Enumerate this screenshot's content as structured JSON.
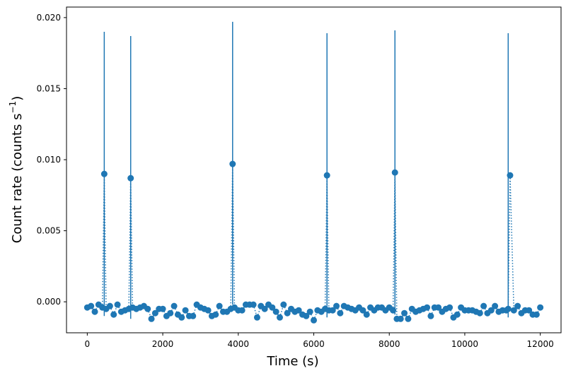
{
  "chart_data": {
    "type": "scatter",
    "title": "",
    "xlabel": "Time (s)",
    "ylabel_main": "Count rate (counts s",
    "ylabel_sup": "−1",
    "ylabel_close": ")",
    "xlim": [
      -550,
      12550
    ],
    "ylim": [
      -0.00218,
      0.02074
    ],
    "x_ticks": [
      0,
      2000,
      4000,
      6000,
      8000,
      10000,
      12000
    ],
    "x_tick_labels": [
      "0",
      "2000",
      "4000",
      "6000",
      "8000",
      "10000",
      "12000"
    ],
    "y_ticks": [
      0.0,
      0.005,
      0.01,
      0.015,
      0.02
    ],
    "y_tick_labels": [
      "0.000",
      "0.005",
      "0.010",
      "0.015",
      "0.020"
    ],
    "grid": false,
    "legend": "none",
    "series_color": "#1f77b4",
    "marker": "circle",
    "connector": "dotted",
    "x": [
      0,
      100,
      200,
      300,
      400,
      450,
      500,
      600,
      700,
      800,
      900,
      1000,
      1100,
      1150,
      1200,
      1300,
      1400,
      1500,
      1600,
      1700,
      1800,
      1900,
      2000,
      2100,
      2200,
      2300,
      2400,
      2500,
      2600,
      2700,
      2800,
      2900,
      3000,
      3100,
      3200,
      3300,
      3400,
      3500,
      3600,
      3700,
      3800,
      3850,
      3900,
      4000,
      4100,
      4200,
      4300,
      4400,
      4500,
      4600,
      4700,
      4800,
      4900,
      5000,
      5100,
      5200,
      5300,
      5400,
      5500,
      5600,
      5700,
      5800,
      5900,
      6000,
      6100,
      6200,
      6300,
      6350,
      6400,
      6500,
      6600,
      6700,
      6800,
      6900,
      7000,
      7100,
      7200,
      7300,
      7400,
      7500,
      7600,
      7700,
      7800,
      7900,
      8000,
      8100,
      8150,
      8200,
      8300,
      8400,
      8500,
      8600,
      8700,
      8800,
      8900,
      9000,
      9100,
      9200,
      9300,
      9400,
      9500,
      9600,
      9700,
      9800,
      9900,
      10000,
      10100,
      10200,
      10300,
      10400,
      10500,
      10600,
      10700,
      10800,
      10900,
      11000,
      11100,
      11150,
      11200,
      11300,
      11400,
      11500,
      11600,
      11700,
      11800,
      11900,
      12000
    ],
    "y": [
      -0.0004,
      -0.0003,
      -0.0007,
      -0.0002,
      -0.0004,
      0.009,
      -0.0005,
      -0.0003,
      -0.0009,
      -0.0002,
      -0.0007,
      -0.0006,
      -0.0005,
      0.0087,
      -0.0004,
      -0.0005,
      -0.0004,
      -0.0003,
      -0.0005,
      -0.0012,
      -0.0008,
      -0.0005,
      -0.0005,
      -0.001,
      -0.0008,
      -0.0003,
      -0.0009,
      -0.0011,
      -0.0006,
      -0.001,
      -0.001,
      -0.0002,
      -0.0004,
      -0.0005,
      -0.0006,
      -0.001,
      -0.0009,
      -0.0003,
      -0.0007,
      -0.0007,
      -0.0005,
      0.0097,
      -0.0004,
      -0.0006,
      -0.0006,
      -0.0002,
      -0.0002,
      -0.0002,
      -0.0011,
      -0.0003,
      -0.0005,
      -0.0002,
      -0.0004,
      -0.0007,
      -0.0011,
      -0.0002,
      -0.0008,
      -0.0005,
      -0.0007,
      -0.0006,
      -0.0009,
      -0.001,
      -0.0007,
      -0.0013,
      -0.0006,
      -0.0007,
      -0.0005,
      0.0089,
      -0.0006,
      -0.0006,
      -0.0003,
      -0.0008,
      -0.0003,
      -0.0004,
      -0.0005,
      -0.0006,
      -0.0004,
      -0.0006,
      -0.0009,
      -0.0004,
      -0.0006,
      -0.0004,
      -0.0004,
      -0.0006,
      -0.0004,
      -0.0006,
      0.0091,
      -0.0012,
      -0.0012,
      -0.0008,
      -0.0012,
      -0.0005,
      -0.0007,
      -0.0006,
      -0.0005,
      -0.0004,
      -0.001,
      -0.0004,
      -0.0004,
      -0.0007,
      -0.0005,
      -0.0004,
      -0.0011,
      -0.0009,
      -0.0004,
      -0.0006,
      -0.0006,
      -0.0006,
      -0.0007,
      -0.0008,
      -0.0003,
      -0.0008,
      -0.0006,
      -0.0003,
      -0.0007,
      -0.0006,
      -0.0006,
      -0.0005,
      0.0089,
      -0.0006,
      -0.0003,
      -0.0008,
      -0.0006,
      -0.0006,
      -0.0009,
      -0.0009,
      -0.0004
    ],
    "error_bars": [
      {
        "x": 450,
        "low": -0.001,
        "high": 0.019
      },
      {
        "x": 1150,
        "low": -0.0012,
        "high": 0.0187
      },
      {
        "x": 3850,
        "low": -0.0002,
        "high": 0.0197
      },
      {
        "x": 6350,
        "low": -0.0011,
        "high": 0.0189
      },
      {
        "x": 8150,
        "low": -0.0009,
        "high": 0.0191
      },
      {
        "x": 11150,
        "low": -0.0011,
        "high": 0.0189
      }
    ]
  }
}
